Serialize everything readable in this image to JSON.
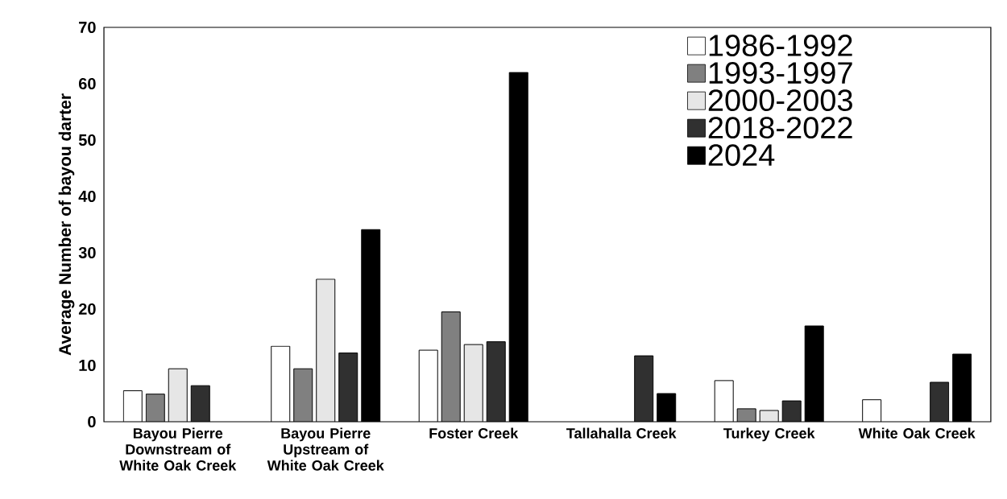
{
  "chart_data": {
    "type": "bar",
    "ylabel": "Average Number of bayou darter",
    "categories": [
      "Bayou Pierre Downstream of White Oak Creek",
      "Bayou Pierre Upstream of White Oak Creek",
      "Foster Creek",
      "Tallahalla Creek",
      "Turkey Creek",
      "White Oak Creek"
    ],
    "series": [
      {
        "name": "1986-1992",
        "color": "#ffffff",
        "values": [
          5.5,
          13.4,
          12.7,
          null,
          7.3,
          3.9
        ]
      },
      {
        "name": "1993-1997",
        "color": "#808080",
        "values": [
          4.9,
          9.4,
          19.5,
          null,
          2.3,
          null
        ]
      },
      {
        "name": "2000-2003",
        "color": "#e6e6e6",
        "values": [
          9.4,
          25.3,
          13.7,
          null,
          2.0,
          null
        ]
      },
      {
        "name": "2018-2022",
        "color": "#303030",
        "values": [
          6.4,
          12.2,
          14.2,
          11.7,
          3.7,
          7.0
        ]
      },
      {
        "name": "2024",
        "color": "#000000",
        "values": [
          null,
          34.1,
          62,
          5.0,
          17.0,
          12.0
        ]
      }
    ],
    "ylim": [
      0,
      70
    ],
    "yticks": [
      0,
      10,
      20,
      30,
      40,
      50,
      60,
      70
    ],
    "legend": "top right",
    "grid": false
  }
}
